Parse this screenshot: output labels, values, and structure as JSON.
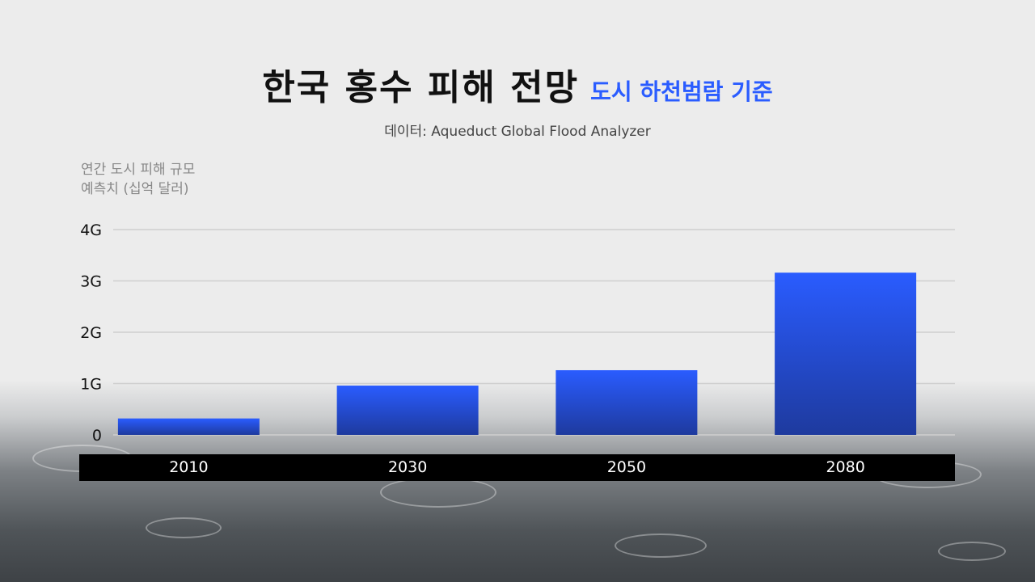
{
  "title": {
    "main": "한국 홍수 피해 전망",
    "sub": "도시 하천범람 기준"
  },
  "source": "데이터: Aqueduct Global Flood Analyzer",
  "chart_data": {
    "type": "bar",
    "title": "한국 홍수 피해 전망",
    "subtitle": "도시 하천범람 기준",
    "ylabel_lines": [
      "연간 도시 피해 규모",
      "예측치 (십억 달러)"
    ],
    "categories": [
      "2010",
      "2030",
      "2050",
      "2080"
    ],
    "values": [
      0.32,
      0.96,
      1.26,
      3.16
    ],
    "yticks": [
      {
        "value": 0,
        "label": "0"
      },
      {
        "value": 1,
        "label": "1G"
      },
      {
        "value": 2,
        "label": "2G"
      },
      {
        "value": 3,
        "label": "3G"
      },
      {
        "value": 4,
        "label": "4G"
      }
    ],
    "ylim": [
      0,
      4
    ],
    "grid": true,
    "legend": "none",
    "colors": {
      "bar_top": "#2a5cff",
      "bar_bottom": "#1e3a9e",
      "grid": "#cfcfcf",
      "axis_band": "#000000"
    }
  }
}
